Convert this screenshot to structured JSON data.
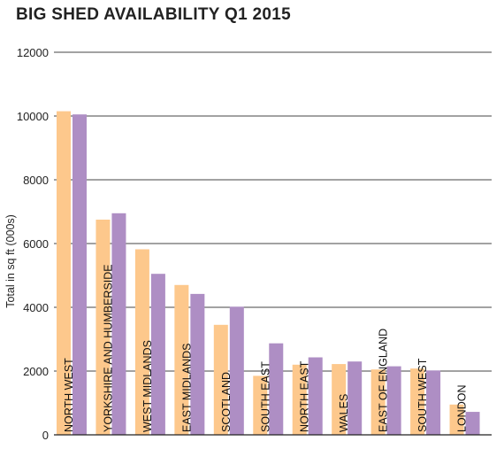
{
  "chart_data": {
    "type": "bar",
    "title": "BIG SHED AVAILABILITY Q1 2015",
    "xlabel": "",
    "ylabel": "Total in sq ft (000s)",
    "ylim": [
      0,
      12000
    ],
    "yticks": [
      0,
      2000,
      4000,
      6000,
      8000,
      10000,
      12000
    ],
    "grid": true,
    "categories": [
      "NORTH WEST",
      "YORKSHIRE AND HUMBERSIDE",
      "WEST MIDLANDS",
      "EAST MIDLANDS",
      "SCOTLAND",
      "SOUTH EAST",
      "NORTH EAST",
      "WALES",
      "EAST OF ENGLAND",
      "SOUTH WEST",
      "LONDON"
    ],
    "series": [
      {
        "color": "#fdc88c",
        "values": [
          10150,
          6750,
          5820,
          4700,
          3450,
          1850,
          2200,
          2220,
          2050,
          2080,
          950
        ]
      },
      {
        "color": "#ae8ec4",
        "values": [
          10050,
          6950,
          5050,
          4420,
          4020,
          2870,
          2430,
          2300,
          2150,
          2020,
          720
        ]
      }
    ]
  }
}
